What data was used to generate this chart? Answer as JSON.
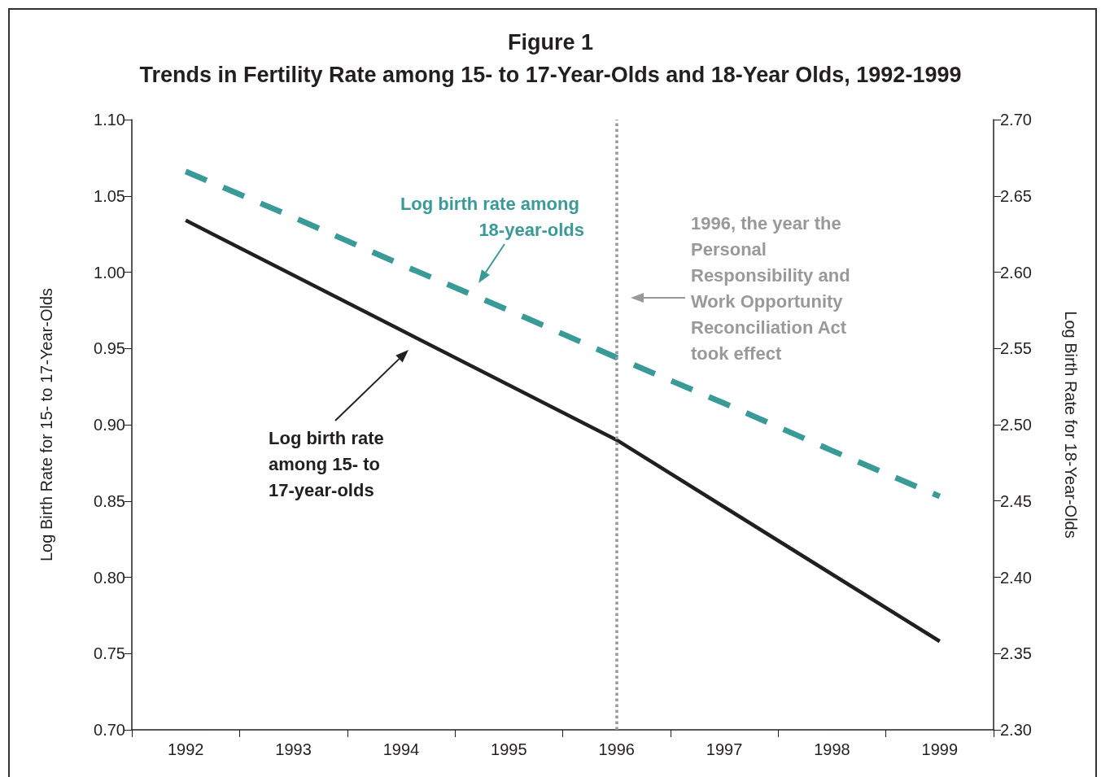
{
  "chart_data": {
    "type": "line",
    "title": "Figure 1",
    "subtitle": "Trends in Fertility Rate among 15- to 17-Year-Olds and 18-Year Olds, 1992-1999",
    "categories": [
      "1992",
      "1993",
      "1994",
      "1995",
      "1996",
      "1997",
      "1998",
      "1999"
    ],
    "ylabel": "Log Birth Rate for 15- to 17-Year-Olds",
    "y2label": "Log Birth Rate for 18-Year-Olds",
    "ylim": [
      0.7,
      1.1
    ],
    "yticks": [
      {
        "value": 0.7,
        "label": "0.70"
      },
      {
        "value": 0.75,
        "label": "0.75"
      },
      {
        "value": 0.8,
        "label": "0.80"
      },
      {
        "value": 0.85,
        "label": "0.85"
      },
      {
        "value": 0.9,
        "label": "0.90"
      },
      {
        "value": 0.95,
        "label": "0.95"
      },
      {
        "value": 1.0,
        "label": "1.00"
      },
      {
        "value": 1.05,
        "label": "1.05"
      },
      {
        "value": 1.1,
        "label": "1.10"
      }
    ],
    "y2lim": [
      2.3,
      2.7
    ],
    "y2ticks": [
      {
        "value": 2.3,
        "label": "2.30"
      },
      {
        "value": 2.35,
        "label": "2.35"
      },
      {
        "value": 2.4,
        "label": "2.40"
      },
      {
        "value": 2.45,
        "label": "2.45"
      },
      {
        "value": 2.5,
        "label": "2.50"
      },
      {
        "value": 2.55,
        "label": "2.55"
      },
      {
        "value": 2.6,
        "label": "2.60"
      },
      {
        "value": 2.65,
        "label": "2.65"
      },
      {
        "value": 2.7,
        "label": "2.70"
      }
    ],
    "series": [
      {
        "name": "Log birth rate among 15- to 17-year-olds",
        "color": "#231f20",
        "line_style": "solid",
        "values": [
          1.034,
          0.998,
          0.962,
          0.926,
          0.89,
          0.846,
          0.802,
          0.758
        ]
      },
      {
        "name": "Log birth rate among 18-year-olds",
        "color": "#3a9a98",
        "line_style": "dashed",
        "axis": "y2",
        "values": [
          2.666,
          2.636,
          2.605,
          2.575,
          2.544,
          2.514,
          2.483,
          2.453
        ]
      }
    ],
    "ref_lines": [
      {
        "axis": "x",
        "value": "1996",
        "label": "1996, the year the Personal Responsibility and Work Opportunity Reconciliation Act took effect",
        "color": "#999999",
        "line_style": "dotted"
      }
    ],
    "marker": "none",
    "grid": false,
    "legend": false
  }
}
